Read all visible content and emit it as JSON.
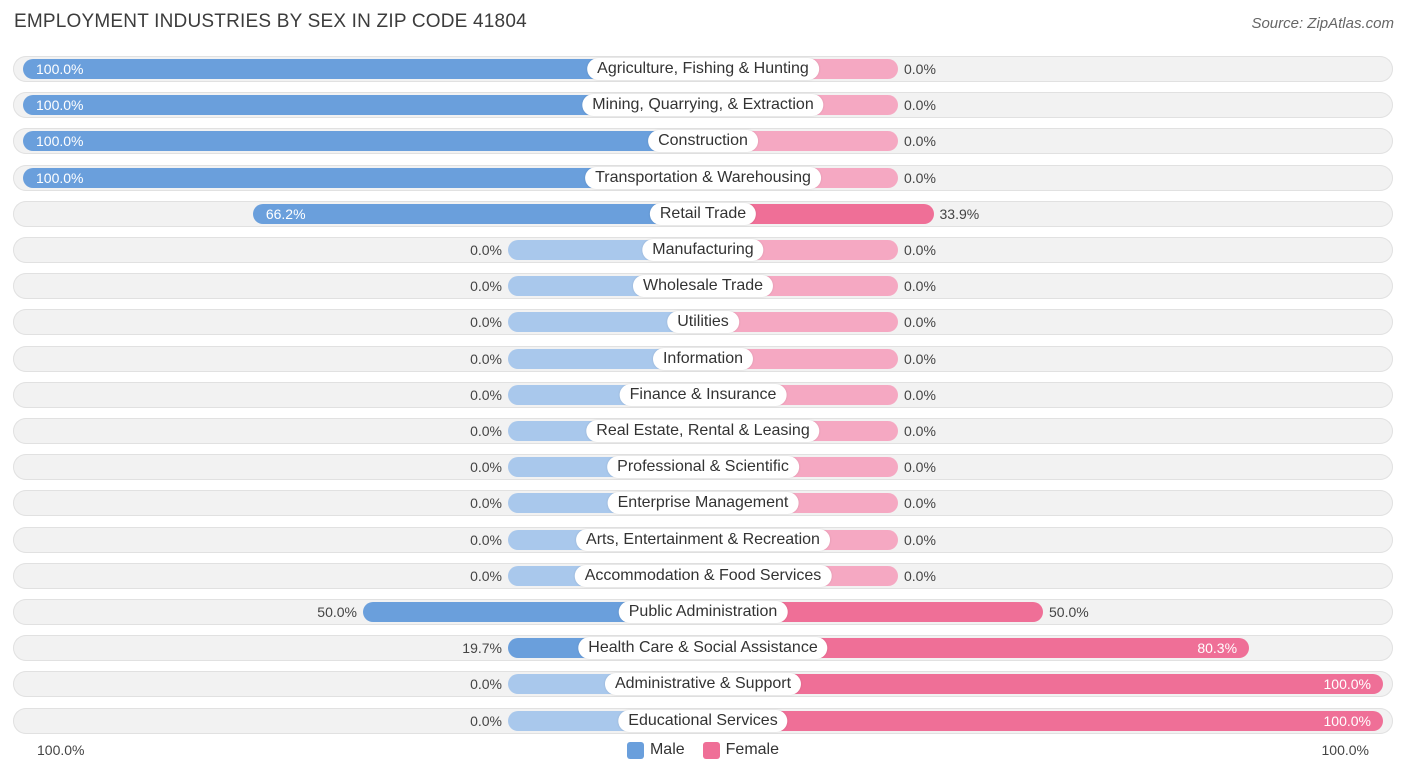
{
  "header": {
    "title": "EMPLOYMENT INDUSTRIES BY SEX IN ZIP CODE 41804",
    "source": "Source: ZipAtlas.com"
  },
  "colors": {
    "male": "#6a9fdc",
    "male_light": "#a9c8ec",
    "female": "#ef6f97",
    "female_light": "#f5a8c2"
  },
  "axis": {
    "left_label": "100.0%",
    "right_label": "100.0%"
  },
  "legend": {
    "male": "Male",
    "female": "Female"
  },
  "chart_data": {
    "type": "bar",
    "orientation": "horizontal-diverging",
    "title": "EMPLOYMENT INDUSTRIES BY SEX IN ZIP CODE 41804",
    "xlim": [
      -100,
      100
    ],
    "categories": [
      "Agriculture, Fishing & Hunting",
      "Mining, Quarrying, & Extraction",
      "Construction",
      "Transportation & Warehousing",
      "Retail Trade",
      "Manufacturing",
      "Wholesale Trade",
      "Utilities",
      "Information",
      "Finance & Insurance",
      "Real Estate, Rental & Leasing",
      "Professional & Scientific",
      "Enterprise Management",
      "Arts, Entertainment & Recreation",
      "Accommodation & Food Services",
      "Public Administration",
      "Health Care & Social Assistance",
      "Administrative & Support",
      "Educational Services"
    ],
    "series": [
      {
        "name": "Male",
        "values": [
          100,
          100,
          100,
          100,
          66.2,
          0,
          0,
          0,
          0,
          0,
          0,
          0,
          0,
          0,
          0,
          50,
          19.7,
          0,
          0
        ],
        "labels": [
          "100.0%",
          "100.0%",
          "100.0%",
          "100.0%",
          "66.2%",
          "0.0%",
          "0.0%",
          "0.0%",
          "0.0%",
          "0.0%",
          "0.0%",
          "0.0%",
          "0.0%",
          "0.0%",
          "0.0%",
          "50.0%",
          "19.7%",
          "0.0%",
          "0.0%"
        ]
      },
      {
        "name": "Female",
        "values": [
          0,
          0,
          0,
          0,
          33.9,
          0,
          0,
          0,
          0,
          0,
          0,
          0,
          0,
          0,
          0,
          50,
          80.3,
          100,
          100
        ],
        "labels": [
          "0.0%",
          "0.0%",
          "0.0%",
          "0.0%",
          "33.9%",
          "0.0%",
          "0.0%",
          "0.0%",
          "0.0%",
          "0.0%",
          "0.0%",
          "0.0%",
          "0.0%",
          "0.0%",
          "0.0%",
          "50.0%",
          "80.3%",
          "100.0%",
          "100.0%"
        ]
      }
    ]
  }
}
